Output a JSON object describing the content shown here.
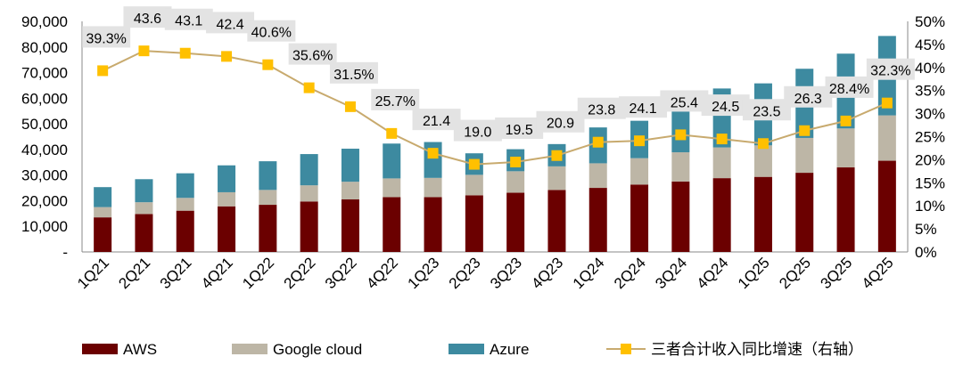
{
  "chart_data": {
    "type": "bar",
    "stacked": true,
    "categories": [
      "1Q21",
      "2Q21",
      "3Q21",
      "4Q21",
      "1Q22",
      "2Q22",
      "3Q22",
      "4Q22",
      "1Q23",
      "2Q23",
      "3Q23",
      "4Q23",
      "1Q24",
      "2Q24",
      "3Q24",
      "4Q24",
      "1Q25",
      "2Q25",
      "3Q25",
      "4Q25"
    ],
    "series": [
      {
        "name": "AWS",
        "color": "#6b0000",
        "values": [
          13500,
          14800,
          16100,
          17800,
          18400,
          19700,
          20500,
          21400,
          21400,
          22100,
          23100,
          24200,
          25000,
          26300,
          27500,
          28800,
          29300,
          30900,
          33000,
          35600
        ]
      },
      {
        "name": "Google cloud",
        "color": "#bdb6a6",
        "values": [
          4000,
          4600,
          5000,
          5500,
          5800,
          6300,
          6900,
          7300,
          7500,
          8000,
          8400,
          9200,
          9600,
          10300,
          11400,
          12000,
          12300,
          13600,
          15200,
          17700
        ]
      },
      {
        "name": "Azure",
        "color": "#3d8aa0",
        "values": [
          7800,
          9000,
          9600,
          10500,
          11200,
          12200,
          12900,
          13600,
          14000,
          8400,
          8600,
          8700,
          14000,
          14600,
          16300,
          23000,
          24200,
          27000,
          29200,
          31000
        ]
      }
    ],
    "line_series": {
      "name": "三者合计收入同比增速（右轴）",
      "axis": "right",
      "line_color": "#c8aa6e",
      "marker_color": "#ffc000",
      "values": [
        39.3,
        43.6,
        43.1,
        42.4,
        40.6,
        35.6,
        31.5,
        25.7,
        21.4,
        19.0,
        19.5,
        20.9,
        23.8,
        24.1,
        25.4,
        24.5,
        23.5,
        26.3,
        28.4,
        32.3
      ],
      "labels": [
        "39.3%",
        "43.6",
        "43.1",
        "42.4",
        "40.6%",
        "35.6%",
        "31.5%",
        "25.7%",
        "21.4",
        "19.0",
        "19.5",
        "20.9",
        "23.8",
        "24.1",
        "25.4",
        "24.5",
        "23.5",
        "26.3",
        "28.4%",
        "32.3%"
      ]
    },
    "y_left": {
      "min": 0,
      "max": 90000,
      "ticks": [
        "-",
        "10,000",
        "20,000",
        "30,000",
        "40,000",
        "50,000",
        "60,000",
        "70,000",
        "80,000",
        "90,000"
      ]
    },
    "y_right": {
      "min": 0,
      "max": 50,
      "ticks": [
        "0%",
        "5%",
        "10%",
        "15%",
        "20%",
        "25%",
        "30%",
        "35%",
        "40%",
        "45%",
        "50%"
      ]
    },
    "legend": [
      "AWS",
      "Google cloud",
      "Azure",
      "三者合计收入同比增速（右轴）"
    ],
    "legend_position": "bottom",
    "grid": false
  }
}
